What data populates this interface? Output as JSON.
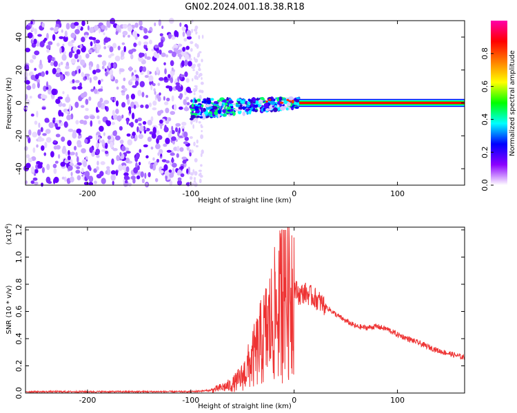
{
  "title": "GN02.2024.001.18.38.R18",
  "chart_data": [
    {
      "type": "heatmap",
      "xlabel": "Height of straight line (km)",
      "ylabel": "Frequency (Hz)",
      "xlim": [
        -260,
        165
      ],
      "ylim": [
        -50,
        50
      ],
      "xticks": [
        -200,
        -100,
        0,
        100
      ],
      "xtick_labels": [
        "-200",
        "-100",
        "0",
        "100"
      ],
      "yticks": [
        -40,
        -20,
        0,
        20,
        40
      ],
      "ytick_labels": [
        "-40",
        "-20",
        "0",
        "20",
        "40"
      ],
      "colorbar": {
        "label": "Normalized spectral amplitude",
        "range": [
          0,
          1
        ],
        "ticks": [
          0.0,
          0.2,
          0.4,
          0.6,
          0.8
        ],
        "tick_labels": [
          "0.0",
          "0.2",
          "0.4",
          "0.6",
          "0.8"
        ],
        "colormap": [
          "#ffffff",
          "#8b00ff",
          "#0000ff",
          "#00ffff",
          "#00ff00",
          "#ffff00",
          "#ff7f00",
          "#ff0000",
          "#ff00aa"
        ]
      },
      "regions": [
        {
          "x_range": [
            -260,
            -100
          ],
          "description": "noise",
          "amplitude": 0.15
        },
        {
          "x_range": [
            -100,
            -88
          ],
          "description": "sparse noise",
          "amplitude": 0.05
        },
        {
          "x_range": [
            -100,
            5
          ],
          "description": "signal cluster",
          "frequency_center": [
            -4,
            0
          ],
          "amplitude": 0.4
        },
        {
          "x_range": [
            5,
            165
          ],
          "description": "stable tone",
          "frequency": 0,
          "amplitude": 0.9
        }
      ]
    },
    {
      "type": "line",
      "xlabel": "Height of straight line (km)",
      "ylabel": "SNR (10 * v/v)",
      "y_multiplier_label": "(x10",
      "y_multiplier_exp": "4",
      "y_multiplier_close": ")",
      "xlim": [
        -260,
        165
      ],
      "ylim": [
        0,
        1.22
      ],
      "xticks": [
        -200,
        -100,
        0,
        100
      ],
      "xtick_labels": [
        "-200",
        "-100",
        "0",
        "100"
      ],
      "yticks": [
        0,
        0.2,
        0.4,
        0.6,
        0.8,
        1.0,
        1.2
      ],
      "ytick_labels": [
        "0.0",
        "0.2",
        "0.4",
        "0.6",
        "0.8",
        "1.0",
        "1.2"
      ],
      "color": "#ee3333",
      "series": [
        {
          "x": [
            -260,
            -200,
            -150,
            -100,
            -80,
            -60,
            -50,
            -40,
            -30,
            -20,
            -10,
            -5,
            0,
            5,
            10,
            20,
            30,
            40,
            50,
            60,
            70,
            80,
            90,
            100,
            120,
            140,
            165
          ],
          "y": [
            0.01,
            0.01,
            0.01,
            0.01,
            0.02,
            0.06,
            0.12,
            0.25,
            0.4,
            0.55,
            0.7,
            0.8,
            0.78,
            0.72,
            0.74,
            0.7,
            0.64,
            0.58,
            0.53,
            0.49,
            0.48,
            0.49,
            0.47,
            0.43,
            0.37,
            0.31,
            0.26
          ]
        }
      ]
    }
  ]
}
